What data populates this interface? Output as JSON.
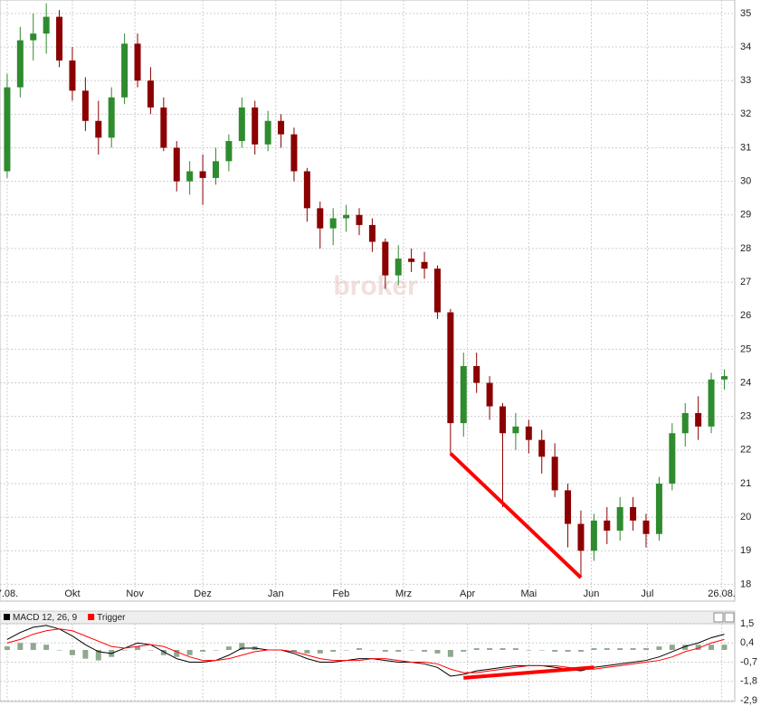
{
  "chart_data": [
    {
      "type": "candlestick",
      "watermark": "broker",
      "up_color": "#2e8b2e",
      "down_color": "#8b0000",
      "open": [
        30.3,
        32.8,
        34.2,
        34.4,
        34.9,
        33.6,
        32.7,
        31.8,
        31.3,
        32.5,
        34.1,
        33.0,
        32.2,
        31.0,
        30.0,
        30.3,
        30.1,
        30.6,
        31.2,
        32.2,
        31.1,
        31.8,
        31.4,
        30.3,
        29.2,
        28.6,
        28.9,
        29.0,
        28.7,
        28.2,
        27.2,
        27.7,
        27.6,
        27.4,
        26.1,
        22.8,
        24.5,
        24.0,
        23.3,
        22.5,
        22.7,
        22.3,
        21.8,
        20.8,
        19.8,
        19.0,
        19.9,
        19.6,
        20.3,
        19.9,
        19.5,
        21.0,
        22.5,
        23.1,
        22.7,
        24.1
      ],
      "high": [
        33.2,
        34.6,
        35.0,
        35.3,
        35.1,
        34.0,
        33.1,
        32.4,
        32.8,
        34.4,
        34.4,
        33.4,
        32.5,
        31.2,
        30.6,
        30.8,
        31.0,
        31.4,
        32.5,
        32.4,
        32.1,
        32.0,
        31.6,
        30.4,
        29.4,
        29.2,
        29.3,
        29.2,
        28.9,
        28.3,
        28.1,
        28.0,
        27.9,
        27.5,
        26.2,
        24.9,
        24.9,
        24.2,
        23.4,
        23.1,
        22.9,
        22.6,
        22.2,
        21.0,
        20.2,
        20.1,
        20.3,
        20.6,
        20.6,
        20.1,
        21.2,
        22.8,
        23.4,
        23.6,
        24.3,
        24.4
      ],
      "low": [
        30.1,
        32.5,
        33.6,
        33.8,
        33.4,
        32.4,
        31.5,
        30.8,
        31.0,
        32.3,
        32.8,
        32.0,
        30.9,
        29.7,
        29.6,
        29.3,
        29.9,
        30.3,
        31.0,
        30.8,
        30.9,
        31.0,
        30.0,
        28.8,
        28.0,
        28.1,
        28.5,
        28.4,
        27.9,
        26.8,
        26.9,
        27.3,
        27.1,
        25.9,
        21.9,
        22.4,
        23.7,
        22.9,
        20.3,
        22.0,
        21.9,
        21.3,
        20.6,
        19.1,
        18.2,
        18.7,
        19.2,
        19.3,
        19.6,
        19.1,
        19.3,
        20.8,
        22.1,
        22.3,
        22.5,
        23.8
      ],
      "close": [
        32.8,
        34.2,
        34.4,
        34.9,
        33.6,
        32.7,
        31.8,
        31.3,
        32.5,
        34.1,
        33.0,
        32.2,
        31.0,
        30.0,
        30.3,
        30.1,
        30.6,
        31.2,
        32.2,
        31.1,
        31.8,
        31.4,
        30.3,
        29.2,
        28.6,
        28.9,
        29.0,
        28.7,
        28.2,
        27.2,
        27.7,
        27.6,
        27.4,
        26.1,
        22.8,
        24.5,
        24.0,
        23.3,
        22.5,
        22.7,
        22.3,
        21.8,
        20.8,
        19.8,
        19.0,
        19.9,
        19.6,
        20.3,
        19.9,
        19.5,
        21.0,
        22.5,
        23.1,
        22.7,
        24.1,
        24.2
      ],
      "xlim": [
        -0.55,
        55.8
      ],
      "xticks": [
        {
          "value": 0,
          "label": "7.08."
        },
        {
          "value": 5.0,
          "label": "Okt"
        },
        {
          "value": 9.8,
          "label": "Nov"
        },
        {
          "value": 15.0,
          "label": "Dez"
        },
        {
          "value": 20.6,
          "label": "Jan"
        },
        {
          "value": 25.6,
          "label": "Feb"
        },
        {
          "value": 30.4,
          "label": "Mrz"
        },
        {
          "value": 35.3,
          "label": "Apr"
        },
        {
          "value": 40.0,
          "label": "Mai"
        },
        {
          "value": 44.8,
          "label": "Jun"
        },
        {
          "value": 49.1,
          "label": "Jul"
        },
        {
          "value": 54.8,
          "label": "26.08."
        }
      ],
      "ylim": [
        17.5,
        35.4
      ],
      "yticks": [
        18,
        19,
        20,
        21,
        22,
        23,
        24,
        25,
        26,
        27,
        28,
        29,
        30,
        31,
        32,
        33,
        34,
        35
      ],
      "grid": true,
      "trendlines": [
        {
          "x": [
            34,
            44
          ],
          "y": [
            21.9,
            18.2
          ],
          "color": "#ff0000"
        }
      ]
    },
    {
      "type": "line",
      "series": [
        {
          "name": "MACD 12, 26, 9",
          "color": "#000000",
          "values": [
            0.6,
            1.0,
            1.3,
            1.4,
            1.2,
            0.8,
            0.3,
            -0.1,
            -0.2,
            0.1,
            0.4,
            0.3,
            -0.1,
            -0.5,
            -0.7,
            -0.7,
            -0.6,
            -0.3,
            0.1,
            0.1,
            0.0,
            0.0,
            -0.2,
            -0.5,
            -0.7,
            -0.7,
            -0.6,
            -0.5,
            -0.5,
            -0.6,
            -0.7,
            -0.7,
            -0.8,
            -1.0,
            -1.5,
            -1.4,
            -1.2,
            -1.1,
            -1.0,
            -0.9,
            -0.9,
            -0.9,
            -1.0,
            -1.1,
            -1.2,
            -1.0,
            -0.9,
            -0.8,
            -0.7,
            -0.6,
            -0.4,
            -0.1,
            0.2,
            0.4,
            0.7,
            0.9
          ]
        },
        {
          "name": "Trigger",
          "color": "#ff0000",
          "values": [
            0.4,
            0.6,
            0.9,
            1.1,
            1.2,
            1.1,
            0.8,
            0.5,
            0.2,
            0.1,
            0.2,
            0.3,
            0.2,
            -0.1,
            -0.4,
            -0.6,
            -0.6,
            -0.5,
            -0.3,
            -0.1,
            0.0,
            0.0,
            -0.1,
            -0.3,
            -0.5,
            -0.6,
            -0.6,
            -0.6,
            -0.5,
            -0.5,
            -0.6,
            -0.7,
            -0.7,
            -0.8,
            -1.1,
            -1.3,
            -1.3,
            -1.2,
            -1.1,
            -1.0,
            -0.9,
            -0.9,
            -0.9,
            -1.0,
            -1.1,
            -1.1,
            -1.0,
            -0.9,
            -0.8,
            -0.7,
            -0.6,
            -0.4,
            -0.1,
            0.1,
            0.4,
            0.6
          ]
        }
      ],
      "histogram": {
        "color": "#8fa88f",
        "values": [
          0.2,
          0.4,
          0.4,
          0.3,
          0.0,
          -0.3,
          -0.5,
          -0.6,
          -0.4,
          0.0,
          0.2,
          0.0,
          -0.3,
          -0.4,
          -0.3,
          -0.1,
          0.0,
          0.2,
          0.4,
          0.2,
          0.0,
          0.0,
          -0.1,
          -0.2,
          -0.2,
          -0.1,
          0.0,
          0.1,
          0.0,
          -0.1,
          -0.1,
          0.0,
          -0.1,
          -0.2,
          -0.4,
          -0.1,
          0.1,
          0.1,
          0.1,
          0.1,
          0.0,
          0.0,
          -0.1,
          -0.1,
          -0.1,
          0.1,
          0.1,
          0.1,
          0.1,
          0.1,
          0.2,
          0.3,
          0.3,
          0.3,
          0.3,
          0.3
        ]
      },
      "ylim": [
        -2.9,
        1.5
      ],
      "yticks": [
        {
          "value": 1.5,
          "label": "1,5"
        },
        {
          "value": 0.4,
          "label": "0,4"
        },
        {
          "value": -0.7,
          "label": "-0,7"
        },
        {
          "value": -1.8,
          "label": "-1,8"
        },
        {
          "value": -2.9,
          "label": "-2,9"
        }
      ],
      "grid": true,
      "trendlines": [
        {
          "x": [
            35,
            45
          ],
          "y": [
            -1.6,
            -1.0
          ],
          "color": "#ff0000"
        }
      ]
    }
  ]
}
